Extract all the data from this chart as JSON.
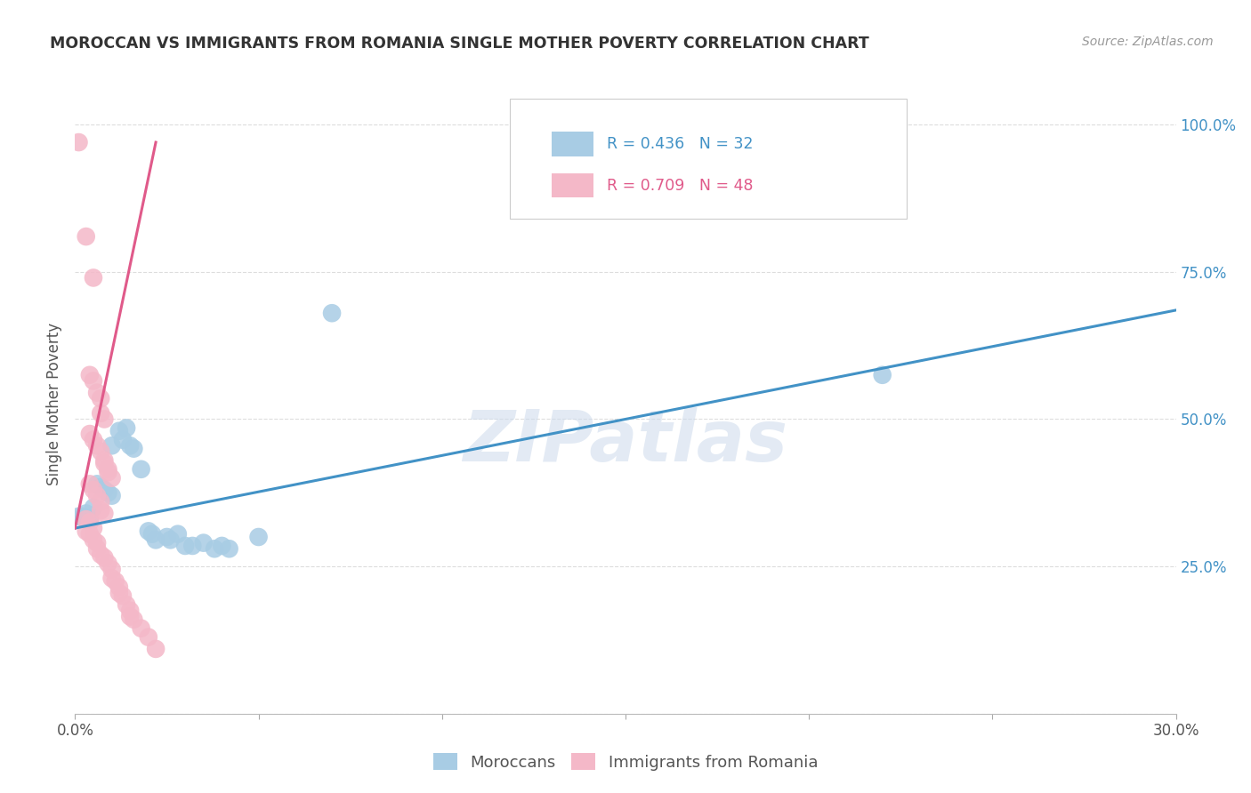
{
  "title": "MOROCCAN VS IMMIGRANTS FROM ROMANIA SINGLE MOTHER POVERTY CORRELATION CHART",
  "source": "Source: ZipAtlas.com",
  "ylabel": "Single Mother Poverty",
  "watermark": "ZIPatlas",
  "xlim": [
    0.0,
    0.3
  ],
  "ylim": [
    0.0,
    1.05
  ],
  "xticks": [
    0.0,
    0.05,
    0.1,
    0.15,
    0.2,
    0.25,
    0.3
  ],
  "xtick_labels": [
    "0.0%",
    "",
    "",
    "",
    "",
    "",
    "30.0%"
  ],
  "yticks_right": [
    0.0,
    0.25,
    0.5,
    0.75,
    1.0
  ],
  "ytick_labels_right": [
    "",
    "25.0%",
    "50.0%",
    "75.0%",
    "100.0%"
  ],
  "blue_R": 0.436,
  "blue_N": 32,
  "pink_R": 0.709,
  "pink_N": 48,
  "legend1_label": "Moroccans",
  "legend2_label": "Immigrants from Romania",
  "blue_color": "#a8cce4",
  "pink_color": "#f4b8c8",
  "blue_line_color": "#4292c6",
  "pink_line_color": "#e05a8a",
  "blue_scatter": [
    [
      0.001,
      0.335
    ],
    [
      0.002,
      0.335
    ],
    [
      0.003,
      0.34
    ],
    [
      0.004,
      0.33
    ],
    [
      0.005,
      0.35
    ],
    [
      0.006,
      0.39
    ],
    [
      0.007,
      0.385
    ],
    [
      0.008,
      0.38
    ],
    [
      0.009,
      0.375
    ],
    [
      0.01,
      0.37
    ],
    [
      0.01,
      0.455
    ],
    [
      0.012,
      0.48
    ],
    [
      0.013,
      0.465
    ],
    [
      0.014,
      0.485
    ],
    [
      0.015,
      0.455
    ],
    [
      0.016,
      0.45
    ],
    [
      0.018,
      0.415
    ],
    [
      0.02,
      0.31
    ],
    [
      0.021,
      0.305
    ],
    [
      0.022,
      0.295
    ],
    [
      0.025,
      0.3
    ],
    [
      0.026,
      0.295
    ],
    [
      0.028,
      0.305
    ],
    [
      0.03,
      0.285
    ],
    [
      0.032,
      0.285
    ],
    [
      0.035,
      0.29
    ],
    [
      0.038,
      0.28
    ],
    [
      0.04,
      0.285
    ],
    [
      0.042,
      0.28
    ],
    [
      0.05,
      0.3
    ],
    [
      0.07,
      0.68
    ],
    [
      0.22,
      0.575
    ]
  ],
  "pink_scatter": [
    [
      0.001,
      0.97
    ],
    [
      0.003,
      0.81
    ],
    [
      0.005,
      0.74
    ],
    [
      0.004,
      0.575
    ],
    [
      0.005,
      0.565
    ],
    [
      0.006,
      0.545
    ],
    [
      0.007,
      0.535
    ],
    [
      0.007,
      0.51
    ],
    [
      0.008,
      0.5
    ],
    [
      0.004,
      0.475
    ],
    [
      0.005,
      0.465
    ],
    [
      0.006,
      0.455
    ],
    [
      0.007,
      0.445
    ],
    [
      0.008,
      0.43
    ],
    [
      0.008,
      0.425
    ],
    [
      0.009,
      0.415
    ],
    [
      0.009,
      0.41
    ],
    [
      0.01,
      0.4
    ],
    [
      0.004,
      0.39
    ],
    [
      0.005,
      0.38
    ],
    [
      0.006,
      0.37
    ],
    [
      0.007,
      0.36
    ],
    [
      0.007,
      0.345
    ],
    [
      0.008,
      0.34
    ],
    [
      0.003,
      0.33
    ],
    [
      0.004,
      0.325
    ],
    [
      0.005,
      0.315
    ],
    [
      0.003,
      0.31
    ],
    [
      0.004,
      0.305
    ],
    [
      0.005,
      0.295
    ],
    [
      0.006,
      0.29
    ],
    [
      0.006,
      0.28
    ],
    [
      0.007,
      0.27
    ],
    [
      0.008,
      0.265
    ],
    [
      0.009,
      0.255
    ],
    [
      0.01,
      0.245
    ],
    [
      0.01,
      0.23
    ],
    [
      0.011,
      0.225
    ],
    [
      0.012,
      0.215
    ],
    [
      0.012,
      0.205
    ],
    [
      0.013,
      0.2
    ],
    [
      0.014,
      0.185
    ],
    [
      0.015,
      0.175
    ],
    [
      0.015,
      0.165
    ],
    [
      0.016,
      0.16
    ],
    [
      0.018,
      0.145
    ],
    [
      0.02,
      0.13
    ],
    [
      0.022,
      0.11
    ]
  ],
  "blue_trend_x": [
    0.0,
    0.3
  ],
  "blue_trend_y": [
    0.315,
    0.685
  ],
  "pink_trend_x": [
    0.0,
    0.022
  ],
  "pink_trend_y": [
    0.315,
    0.97
  ],
  "background_color": "#ffffff",
  "grid_color": "#dddddd",
  "title_color": "#333333",
  "right_tick_color": "#4292c6"
}
